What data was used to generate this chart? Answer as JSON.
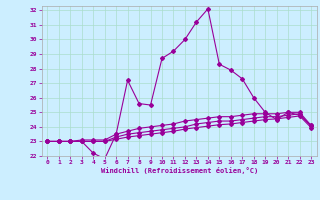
{
  "xlabel": "Windchill (Refroidissement éolien,°C)",
  "background_color": "#cceeff",
  "line_color": "#990099",
  "grid_color": "#aaddcc",
  "xlim": [
    -0.5,
    23.5
  ],
  "ylim": [
    22,
    32.3
  ],
  "yticks": [
    22,
    23,
    24,
    25,
    26,
    27,
    28,
    29,
    30,
    31,
    32
  ],
  "xticks": [
    0,
    1,
    2,
    3,
    4,
    5,
    6,
    7,
    8,
    9,
    10,
    11,
    12,
    13,
    14,
    15,
    16,
    17,
    18,
    19,
    20,
    21,
    22,
    23
  ],
  "lines": [
    [
      23.0,
      23.0,
      23.0,
      23.0,
      22.2,
      21.8,
      23.5,
      27.2,
      25.6,
      25.5,
      28.7,
      29.2,
      30.0,
      31.2,
      32.1,
      28.3,
      27.9,
      27.3,
      26.0,
      25.0,
      24.5,
      25.0,
      24.8,
      24.1
    ],
    [
      23.0,
      23.0,
      23.0,
      23.1,
      23.1,
      23.1,
      23.5,
      23.7,
      23.9,
      24.0,
      24.1,
      24.2,
      24.4,
      24.5,
      24.6,
      24.7,
      24.7,
      24.8,
      24.9,
      24.9,
      24.9,
      25.0,
      25.0,
      24.1
    ],
    [
      23.0,
      23.0,
      23.0,
      23.0,
      23.0,
      23.0,
      23.3,
      23.5,
      23.6,
      23.7,
      23.8,
      23.9,
      24.0,
      24.2,
      24.3,
      24.4,
      24.4,
      24.5,
      24.6,
      24.7,
      24.7,
      24.8,
      24.9,
      24.05
    ],
    [
      23.0,
      23.0,
      23.0,
      23.0,
      23.0,
      23.0,
      23.15,
      23.3,
      23.4,
      23.5,
      23.6,
      23.7,
      23.85,
      23.95,
      24.05,
      24.15,
      24.2,
      24.3,
      24.4,
      24.5,
      24.55,
      24.65,
      24.75,
      23.95
    ]
  ]
}
